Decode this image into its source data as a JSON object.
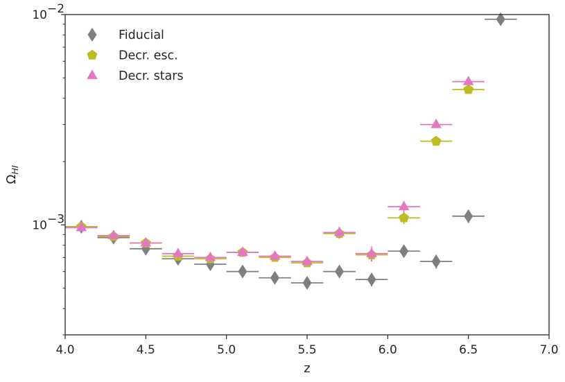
{
  "chart_data": {
    "type": "scatter",
    "title": "",
    "xlabel": "z",
    "ylabel": "Ω",
    "ylabel_sub": "HI",
    "xlim": [
      4.0,
      7.0
    ],
    "ylim": [
      0.0003,
      0.01
    ],
    "yscale": "log",
    "grid": false,
    "legend_position": "top-left",
    "x_ticks": [
      {
        "value": 4.0,
        "label": "4.0"
      },
      {
        "value": 4.5,
        "label": "4.5"
      },
      {
        "value": 5.0,
        "label": "5.0"
      },
      {
        "value": 5.5,
        "label": "5.5"
      },
      {
        "value": 6.0,
        "label": "6.0"
      },
      {
        "value": 6.5,
        "label": "6.5"
      },
      {
        "value": 7.0,
        "label": "7.0"
      }
    ],
    "y_ticks": [
      {
        "value": 0.001,
        "base": "10",
        "exp": "−3"
      },
      {
        "value": 0.01,
        "base": "10",
        "exp": "−2"
      }
    ],
    "x_halfwidth": 0.1,
    "series": [
      {
        "name": "Fiducial",
        "marker": "diamond",
        "color": "#7f7f7f",
        "points": [
          {
            "x": 4.1,
            "y": 0.00098,
            "err": 3e-05
          },
          {
            "x": 4.3,
            "y": 0.00087,
            "err": 3e-05
          },
          {
            "x": 4.5,
            "y": 0.00077,
            "err": 3e-05
          },
          {
            "x": 4.7,
            "y": 0.00069,
            "err": 3e-05
          },
          {
            "x": 4.9,
            "y": 0.00065,
            "err": 3e-05
          },
          {
            "x": 5.1,
            "y": 0.0006,
            "err": 3e-05
          },
          {
            "x": 5.3,
            "y": 0.00056,
            "err": 3e-05
          },
          {
            "x": 5.5,
            "y": 0.00053,
            "err": 3e-05
          },
          {
            "x": 5.7,
            "y": 0.0006,
            "err": 3e-05
          },
          {
            "x": 5.9,
            "y": 0.00055,
            "err": 4e-05
          },
          {
            "x": 6.1,
            "y": 0.00075,
            "err": 5e-05
          },
          {
            "x": 6.3,
            "y": 0.00067,
            "err": 5e-05
          },
          {
            "x": 6.5,
            "y": 0.0011,
            "err": 8e-05
          },
          {
            "x": 6.7,
            "y": 0.0095,
            "err": 0.0005
          }
        ]
      },
      {
        "name": "Decr. esc.",
        "marker": "pentagon",
        "color": "#bcbd22",
        "points": [
          {
            "x": 4.1,
            "y": 0.00098,
            "err": 3e-05
          },
          {
            "x": 4.3,
            "y": 0.00088,
            "err": 3e-05
          },
          {
            "x": 4.5,
            "y": 0.00082,
            "err": 3e-05
          },
          {
            "x": 4.7,
            "y": 0.00071,
            "err": 3e-05
          },
          {
            "x": 4.9,
            "y": 0.00069,
            "err": 3e-05
          },
          {
            "x": 5.1,
            "y": 0.00074,
            "err": 3e-05
          },
          {
            "x": 5.3,
            "y": 0.0007,
            "err": 3e-05
          },
          {
            "x": 5.5,
            "y": 0.00066,
            "err": 3e-05
          },
          {
            "x": 5.7,
            "y": 0.00091,
            "err": 5e-05
          },
          {
            "x": 5.9,
            "y": 0.00072,
            "err": 5e-05
          },
          {
            "x": 6.1,
            "y": 0.00108,
            "err": 7e-05
          },
          {
            "x": 6.3,
            "y": 0.0025,
            "err": 0.0001
          },
          {
            "x": 6.5,
            "y": 0.0044,
            "err": 0.00015
          }
        ]
      },
      {
        "name": "Decr. stars",
        "marker": "triangle",
        "color": "#e377c2",
        "points": [
          {
            "x": 4.1,
            "y": 0.00097,
            "err": 3e-05
          },
          {
            "x": 4.3,
            "y": 0.00089,
            "err": 3e-05
          },
          {
            "x": 4.5,
            "y": 0.00082,
            "err": 3e-05
          },
          {
            "x": 4.7,
            "y": 0.00073,
            "err": 3e-05
          },
          {
            "x": 4.9,
            "y": 0.0007,
            "err": 3e-05
          },
          {
            "x": 5.1,
            "y": 0.00074,
            "err": 3e-05
          },
          {
            "x": 5.3,
            "y": 0.00071,
            "err": 3e-05
          },
          {
            "x": 5.5,
            "y": 0.00067,
            "err": 3e-05
          },
          {
            "x": 5.7,
            "y": 0.00092,
            "err": 6e-05
          },
          {
            "x": 5.9,
            "y": 0.00073,
            "err": 6e-05
          },
          {
            "x": 6.1,
            "y": 0.00122,
            "err": 8e-05
          },
          {
            "x": 6.3,
            "y": 0.003,
            "err": 0.0001
          },
          {
            "x": 6.5,
            "y": 0.0048,
            "err": 0.0002
          }
        ]
      }
    ]
  }
}
